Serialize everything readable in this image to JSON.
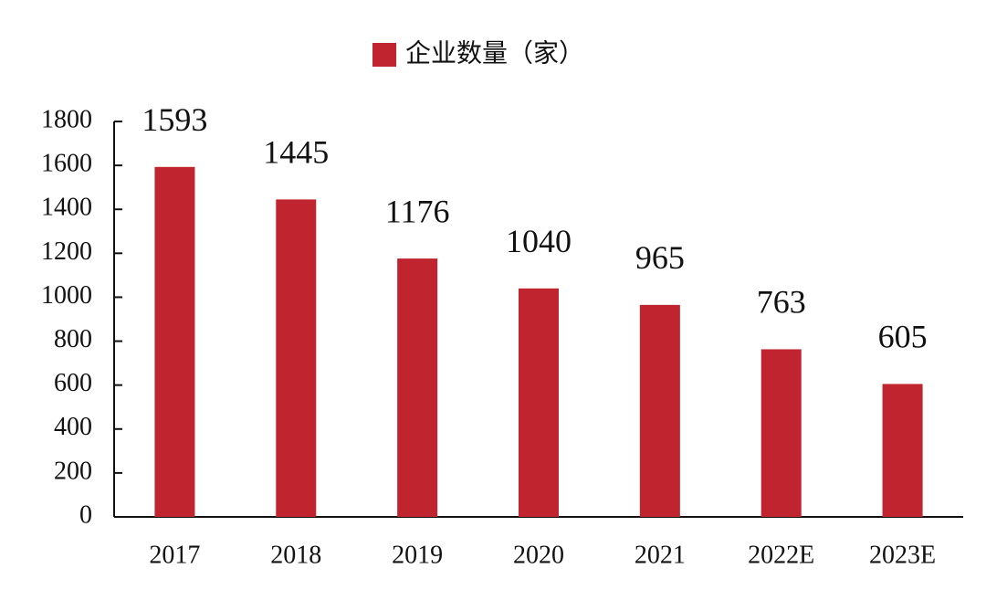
{
  "chart_data": {
    "type": "bar",
    "categories": [
      "2017",
      "2018",
      "2019",
      "2020",
      "2021",
      "2022E",
      "2023E"
    ],
    "series": [
      {
        "name": "企业数量（家）",
        "color": "#c0252f",
        "values": [
          1593,
          1445,
          1176,
          1040,
          965,
          763,
          605
        ]
      }
    ],
    "ylim": [
      0,
      1800
    ],
    "yticks": [
      0,
      200,
      400,
      600,
      800,
      1000,
      1200,
      1400,
      1600,
      1800
    ],
    "grid": false,
    "legend": "top",
    "data_labels": true
  }
}
